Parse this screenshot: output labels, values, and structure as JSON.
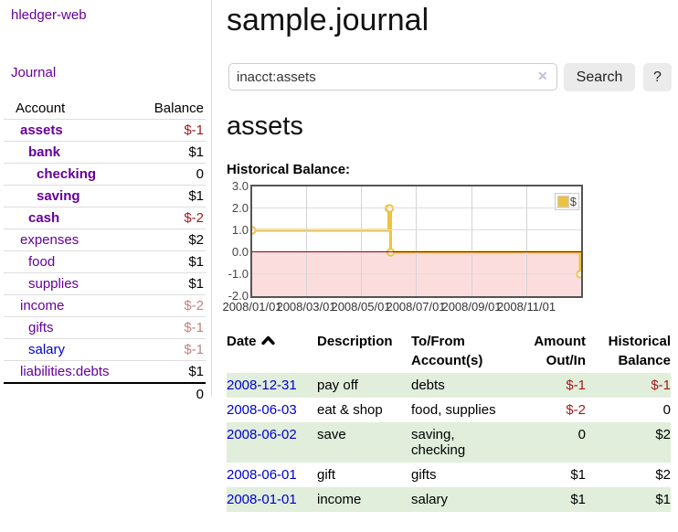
{
  "app": {
    "title": "hledger-web"
  },
  "colors": {
    "link_purple": "#660099",
    "link_blue": "#0000cc",
    "negative_strong": "#9e1a1a",
    "negative_faded": "#c38383",
    "row_shade_green": "#e0eedb",
    "series_gold": "#edc240",
    "negative_region_pink": "#fbdddd",
    "zero_line_red": "#990000",
    "chart_border_gray": "#545454"
  },
  "sidebar": {
    "nav": {
      "journal": "Journal"
    },
    "accounts": {
      "headers": {
        "account": "Account",
        "balance": "Balance"
      },
      "rows": [
        {
          "account": "assets",
          "depth": 1,
          "bold": true,
          "balance": "$-1",
          "tone": "negative"
        },
        {
          "account": "bank",
          "depth": 2,
          "bold": true,
          "balance": "$1",
          "tone": "normal"
        },
        {
          "account": "checking",
          "depth": 3,
          "bold": true,
          "balance": "0",
          "tone": "normal"
        },
        {
          "account": "saving",
          "depth": 3,
          "bold": true,
          "balance": "$1",
          "tone": "normal"
        },
        {
          "account": "cash",
          "depth": 2,
          "bold": true,
          "balance": "$-2",
          "tone": "negative"
        },
        {
          "account": "expenses",
          "depth": 1,
          "bold": false,
          "balance": "$2",
          "tone": "normal"
        },
        {
          "account": "food",
          "depth": 2,
          "bold": false,
          "balance": "$1",
          "tone": "normal"
        },
        {
          "account": "supplies",
          "depth": 2,
          "bold": false,
          "balance": "$1",
          "tone": "normal"
        },
        {
          "account": "income",
          "depth": 1,
          "bold": false,
          "balance": "$-2",
          "tone": "negative-faded"
        },
        {
          "account": "gifts",
          "depth": 2,
          "bold": false,
          "balance": "$-1",
          "tone": "negative-faded"
        },
        {
          "account": "salary",
          "depth": 2,
          "bold": false,
          "balance": "$-1",
          "tone": "negative-faded",
          "link_color": "blue"
        },
        {
          "account": "liabilities:debts",
          "depth": 1,
          "bold": false,
          "balance": "$1",
          "tone": "normal"
        }
      ],
      "total": "0"
    }
  },
  "main": {
    "title": "sample.journal",
    "search": {
      "value": "inacct:assets",
      "clear_glyph": "✕",
      "search_label": "Search",
      "help_label": "?"
    },
    "account_heading": "assets",
    "chart_label": "Historical Balance:"
  },
  "chart_data": {
    "type": "line",
    "step": true,
    "title": "Historical Balance",
    "series": [
      {
        "name": "$",
        "color": "#edc240",
        "points": [
          [
            "2008/01/01",
            1
          ],
          [
            "2008/06/01",
            2
          ],
          [
            "2008/06/02",
            2
          ],
          [
            "2008/06/03",
            0
          ],
          [
            "2008/12/31",
            -1
          ]
        ]
      }
    ],
    "x_range": [
      "2008/01/01",
      "2009/01/01"
    ],
    "ylim": [
      -2,
      3
    ],
    "y_ticks": [
      "3.0",
      "2.0",
      "1.0",
      "0.0",
      "-1.0",
      "-2.0"
    ],
    "x_ticks": [
      "2008/01/01",
      "2008/03/01",
      "2008/05/01",
      "2008/07/01",
      "2008/09/01",
      "2008/11/01"
    ],
    "legend_position": "top-right",
    "grid": true,
    "negative_region_shaded": true
  },
  "register": {
    "headers": {
      "date": "Date",
      "sort_icon": "chevron-up",
      "description": "Description",
      "tofrom_line1": "To/From",
      "tofrom_line2": "Account(s)",
      "amount_line1": "Amount",
      "amount_line2": "Out/In",
      "balance_line1": "Historical",
      "balance_line2": "Balance"
    },
    "rows": [
      {
        "date": "2008-12-31",
        "description": "pay off",
        "accounts": "debts",
        "amount": "$-1",
        "amount_tone": "negative",
        "balance": "$-1",
        "balance_tone": "negative",
        "shaded": true
      },
      {
        "date": "2008-06-03",
        "description": "eat & shop",
        "accounts": "food, supplies",
        "amount": "$-2",
        "amount_tone": "negative",
        "balance": "0",
        "balance_tone": "normal",
        "shaded": false
      },
      {
        "date": "2008-06-02",
        "description": "save",
        "accounts": "saving, checking",
        "amount": "0",
        "amount_tone": "normal",
        "balance": "$2",
        "balance_tone": "normal",
        "shaded": true
      },
      {
        "date": "2008-06-01",
        "description": "gift",
        "accounts": "gifts",
        "amount": "$1",
        "amount_tone": "normal",
        "balance": "$2",
        "balance_tone": "normal",
        "shaded": false
      },
      {
        "date": "2008-01-01",
        "description": "income",
        "accounts": "salary",
        "amount": "$1",
        "amount_tone": "normal",
        "balance": "$1",
        "balance_tone": "normal",
        "shaded": true
      }
    ]
  }
}
